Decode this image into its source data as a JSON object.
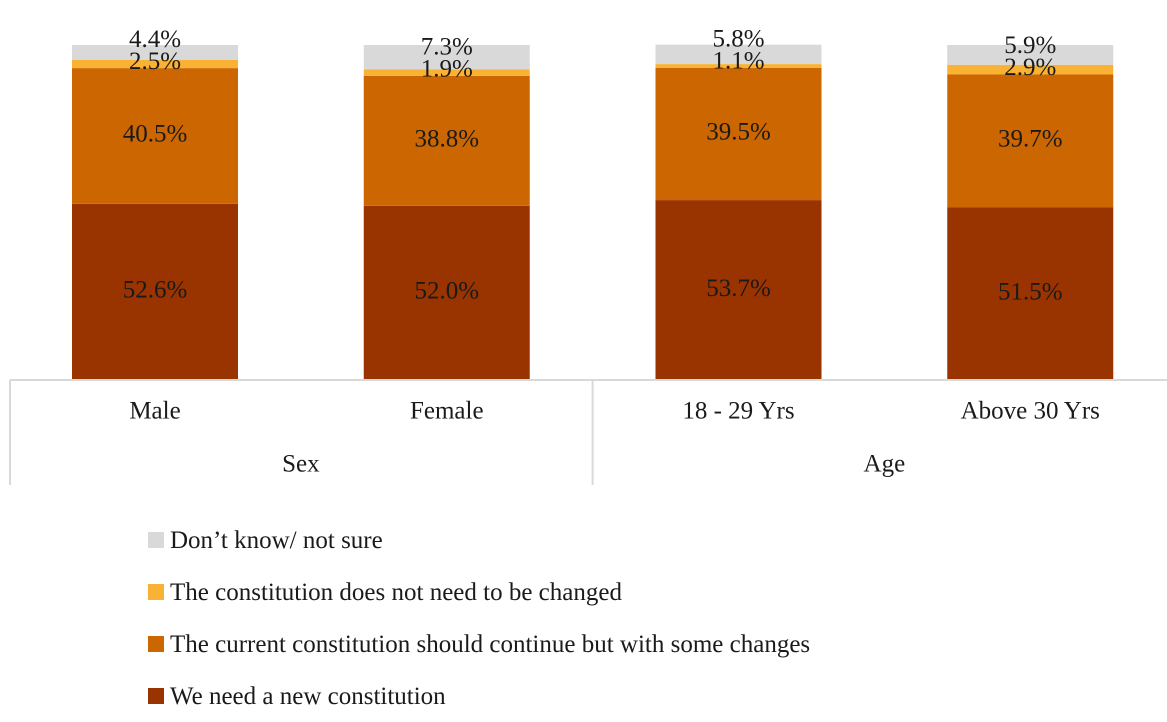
{
  "chart_data": {
    "type": "bar",
    "stacked": true,
    "groups": [
      {
        "label": "Sex",
        "categories": [
          "Male",
          "Female"
        ]
      },
      {
        "label": "Age",
        "categories": [
          "18 - 29 Yrs",
          "Above 30 Yrs"
        ]
      }
    ],
    "categories": [
      "Male",
      "Female",
      "18 - 29 Yrs",
      "Above 30 Yrs"
    ],
    "series": [
      {
        "name": "We need a new constitution",
        "color": "#993300",
        "values": [
          52.6,
          52.0,
          53.7,
          51.5
        ],
        "labels": [
          "52.6%",
          "52.0%",
          "53.7%",
          "51.5%"
        ]
      },
      {
        "name": "The current constitution should continue but with some changes",
        "color": "#cc6600",
        "values": [
          40.5,
          38.8,
          39.5,
          39.7
        ],
        "labels": [
          "40.5%",
          "38.8%",
          "39.5%",
          "39.7%"
        ]
      },
      {
        "name": "The constitution does not need to be changed",
        "color": "#f9b233",
        "values": [
          2.5,
          1.9,
          1.1,
          2.9
        ],
        "labels": [
          "2.5%",
          "1.9%",
          "1.1%",
          "2.9%"
        ]
      },
      {
        "name": "Don’t know/ not sure",
        "color": "#d9d9d9",
        "values": [
          4.4,
          7.3,
          5.8,
          5.9
        ],
        "labels": [
          "4.4%",
          "7.3%",
          "5.8%",
          "5.9%"
        ]
      }
    ],
    "legend_order": [
      3,
      2,
      1,
      0
    ],
    "legend_position": "bottom",
    "ylim": [
      0,
      100
    ],
    "grid": false
  }
}
